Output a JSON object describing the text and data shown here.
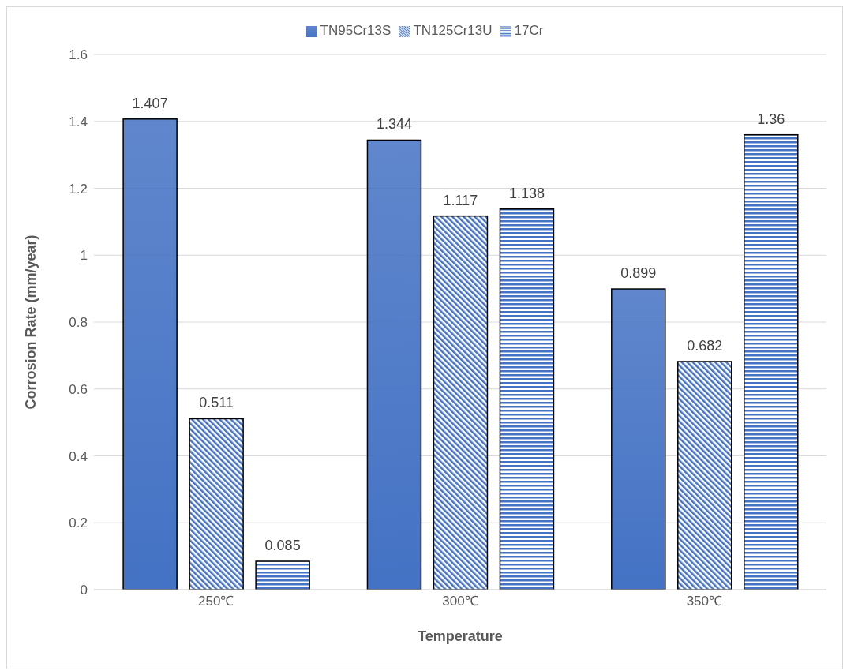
{
  "chart_data": {
    "type": "bar",
    "xlabel": "Temperature",
    "ylabel": "Corrosion Rate (mm/year)",
    "categories": [
      "250℃",
      "300℃",
      "350℃"
    ],
    "series": [
      {
        "name": "TN95Cr13S",
        "color": "#4472c4",
        "values": [
          1.407,
          1.344,
          0.899
        ]
      },
      {
        "name": "TN125Cr13U",
        "color": "#4472c4",
        "values": [
          0.511,
          1.117,
          0.682
        ]
      },
      {
        "name": "17Cr",
        "color": "#4472c4",
        "values": [
          0.085,
          1.138,
          1.36
        ]
      }
    ],
    "ylim": [
      0,
      1.6
    ],
    "yticks": [
      0,
      0.2,
      0.4,
      0.6,
      0.8,
      1,
      1.2,
      1.4,
      1.6
    ],
    "grid": "y",
    "legend": "top",
    "data_labels": true
  }
}
